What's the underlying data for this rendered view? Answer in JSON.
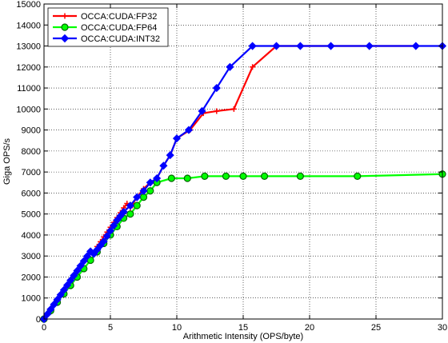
{
  "chart_data": {
    "type": "line",
    "title": "",
    "xlabel": "Arithmetic Intensity (OPS/byte)",
    "ylabel": "Giga OPS/s",
    "xlim": [
      0,
      30
    ],
    "ylim": [
      0,
      15000
    ],
    "x_ticks": [
      0,
      5,
      10,
      15,
      20,
      25,
      30
    ],
    "y_ticks": [
      0,
      1000,
      2000,
      3000,
      4000,
      5000,
      6000,
      7000,
      8000,
      9000,
      10000,
      11000,
      12000,
      13000,
      14000,
      15000
    ],
    "grid": true,
    "legend_position": "top-left",
    "series": [
      {
        "name": "OCCA:CUDA:FP32",
        "color": "#ff0000",
        "marker": "plus",
        "x": [
          0,
          0.25,
          0.5,
          0.75,
          1.0,
          1.25,
          1.5,
          1.75,
          2.0,
          2.25,
          2.5,
          2.75,
          3.0,
          3.25,
          3.5,
          3.75,
          4.0,
          4.25,
          4.5,
          4.75,
          5.0,
          5.25,
          5.5,
          5.75,
          6.0,
          6.25,
          6.5,
          7.0,
          7.5,
          8.0,
          8.5,
          9.0,
          9.5,
          10.0,
          11.0,
          12.0,
          13.0,
          14.3,
          15.7,
          17.5,
          19.3,
          21.6,
          24.5,
          28.0
        ],
        "values": [
          0,
          230,
          460,
          690,
          920,
          1150,
          1380,
          1610,
          1840,
          2070,
          2300,
          2530,
          2760,
          2990,
          3220,
          3100,
          3450,
          3680,
          3910,
          4140,
          4370,
          4600,
          4830,
          5060,
          5290,
          5500,
          5300,
          5800,
          6200,
          6500,
          6700,
          7300,
          7800,
          8600,
          9000,
          9800,
          9900,
          10000,
          12000,
          13000,
          13000,
          13000,
          13000,
          13000
        ]
      },
      {
        "name": "OCCA:CUDA:FP64",
        "color": "#00ff00",
        "marker": "circle",
        "x": [
          0,
          0.5,
          1.0,
          1.5,
          2.0,
          2.5,
          3.0,
          3.5,
          4.0,
          4.5,
          5.0,
          5.5,
          6.0,
          6.5,
          7.0,
          7.5,
          8.0,
          8.5,
          9.6,
          10.8,
          12.1,
          13.7,
          15.0,
          16.6,
          19.3,
          23.6,
          30.0
        ],
        "values": [
          0,
          400,
          800,
          1200,
          1600,
          2000,
          2400,
          2800,
          3200,
          3600,
          4000,
          4400,
          4800,
          5000,
          5400,
          5800,
          6100,
          6500,
          6700,
          6700,
          6800,
          6800,
          6800,
          6800,
          6800,
          6800,
          6900
        ]
      },
      {
        "name": "OCCA:CUDA:INT32",
        "color": "#0000ff",
        "marker": "diamond",
        "x": [
          0,
          0.25,
          0.5,
          0.75,
          1.0,
          1.25,
          1.5,
          1.75,
          2.0,
          2.25,
          2.5,
          2.75,
          3.0,
          3.25,
          3.5,
          3.75,
          4.0,
          4.25,
          4.5,
          4.75,
          5.0,
          5.25,
          5.5,
          5.75,
          6.0,
          6.5,
          7.0,
          7.5,
          8.0,
          8.5,
          9.0,
          9.5,
          10.0,
          10.9,
          11.9,
          13.0,
          14.0,
          15.7,
          17.5,
          19.3,
          21.6,
          24.5,
          28.0,
          30.0
        ],
        "values": [
          0,
          230,
          460,
          690,
          920,
          1150,
          1380,
          1610,
          1840,
          2070,
          2300,
          2530,
          2760,
          2990,
          3220,
          3100,
          3300,
          3500,
          3700,
          3950,
          4200,
          4450,
          4700,
          4900,
          5100,
          5400,
          5800,
          6100,
          6500,
          6700,
          7300,
          7800,
          8600,
          9000,
          9900,
          11000,
          12000,
          13000,
          13000,
          13000,
          13000,
          13000,
          13000,
          13000
        ]
      }
    ]
  }
}
